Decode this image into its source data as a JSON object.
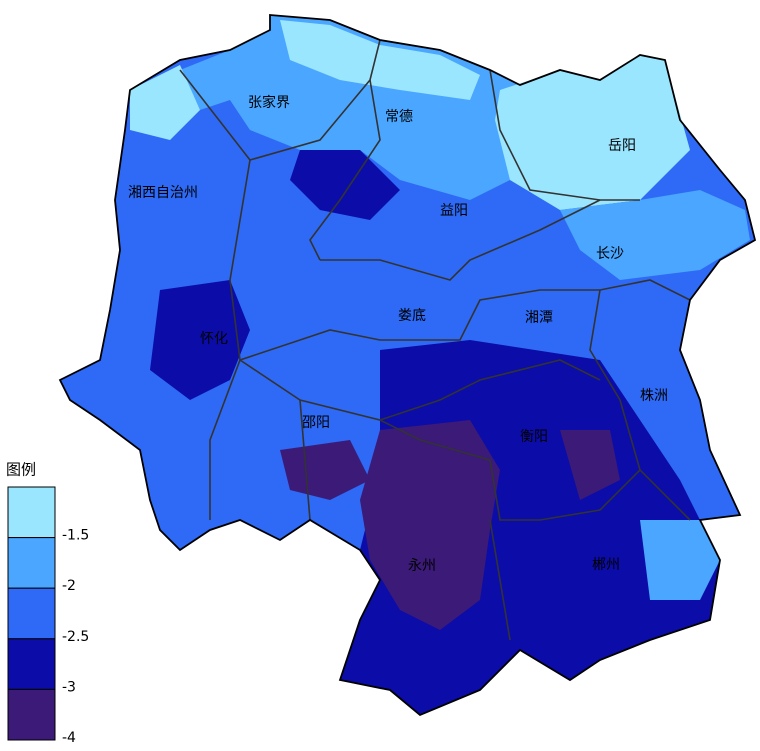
{
  "map": {
    "regions": [
      {
        "label": "张家界"
      },
      {
        "label": "常德"
      },
      {
        "label": "岳阳"
      },
      {
        "label": "湘西自治州"
      },
      {
        "label": "益阳"
      },
      {
        "label": "长沙"
      },
      {
        "label": "娄底"
      },
      {
        "label": "湘潭"
      },
      {
        "label": "怀化"
      },
      {
        "label": "株洲"
      },
      {
        "label": "邵阳"
      },
      {
        "label": "衡阳"
      },
      {
        "label": "永州"
      },
      {
        "label": "郴州"
      }
    ]
  },
  "legend": {
    "title": "图例",
    "classes": [
      {
        "color": "#9be6ff",
        "label": "-1.5"
      },
      {
        "color": "#4aa6ff",
        "label": "-2"
      },
      {
        "color": "#2e6af5",
        "label": "-2.5"
      },
      {
        "color": "#0c0ca8",
        "label": "-3"
      },
      {
        "color": "#3b1a78",
        "label": "-4"
      }
    ]
  }
}
